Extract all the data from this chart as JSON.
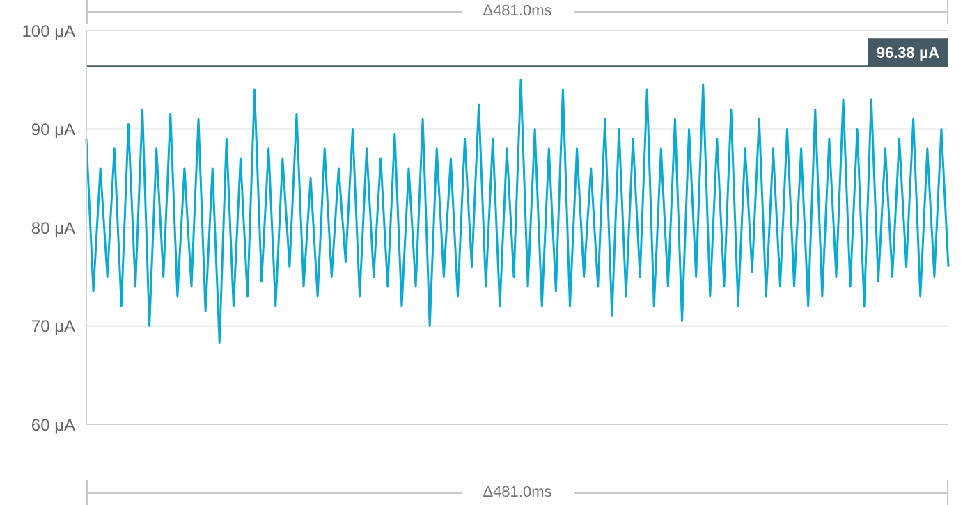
{
  "chart_data": {
    "type": "line",
    "categories": [
      null,
      null,
      null,
      null,
      null,
      null,
      null,
      null,
      null,
      null,
      null,
      null,
      null,
      null,
      null,
      null,
      null,
      null,
      null,
      null,
      null,
      null,
      null,
      null,
      null,
      null,
      null,
      null,
      null,
      null,
      null,
      null,
      null,
      null,
      null,
      null,
      null,
      null,
      null,
      null,
      null,
      null,
      null,
      null,
      null,
      null,
      null,
      null,
      null,
      null,
      null,
      null,
      null,
      null,
      null,
      null,
      null,
      null,
      null,
      null,
      null,
      null,
      null,
      null,
      null,
      null,
      null,
      null,
      null,
      null,
      null,
      null,
      null,
      null,
      null,
      null,
      null,
      null,
      null,
      null,
      null,
      null,
      null,
      null,
      null,
      null,
      null,
      null,
      null,
      null,
      null,
      null,
      null,
      null,
      null,
      null,
      null,
      null,
      null,
      null,
      null,
      null,
      null,
      null,
      null,
      null,
      null,
      null,
      null,
      null,
      null,
      null,
      null,
      null,
      null,
      null,
      null,
      null,
      null,
      null,
      null,
      null,
      null,
      null
    ],
    "series": [
      {
        "color": "#0aaad2",
        "values": [
          89,
          73.5,
          86,
          75,
          88,
          72,
          90.5,
          74,
          92,
          70,
          88,
          75,
          91.5,
          73,
          86,
          74,
          91,
          71.5,
          86,
          68.3,
          89,
          72,
          87,
          73,
          94,
          74.5,
          88,
          72,
          87,
          76,
          91.5,
          74,
          85,
          73,
          88,
          75,
          86,
          76.5,
          90,
          73,
          88,
          75,
          87,
          74,
          89.5,
          72,
          86,
          74,
          91,
          70,
          88,
          75,
          87,
          73,
          89,
          76,
          92.5,
          74,
          89,
          72,
          88,
          75,
          95,
          74,
          90,
          72,
          88,
          73.5,
          94,
          72,
          88,
          75,
          86,
          74,
          91,
          71,
          90,
          73,
          89,
          75,
          94,
          72,
          88,
          74,
          91,
          70.5,
          90,
          75,
          94.5,
          73,
          89,
          74,
          92,
          72,
          88,
          75.5,
          91,
          73,
          88,
          74,
          90,
          74,
          88,
          72,
          92,
          73,
          89,
          75,
          93,
          74,
          90,
          72,
          93,
          74.5,
          88,
          75,
          89,
          76,
          91,
          73,
          88,
          75,
          90,
          76
        ]
      }
    ],
    "ylim": [
      60,
      100
    ],
    "yticks": [
      {
        "value": 60,
        "label": "60 μA"
      },
      {
        "value": 70,
        "label": "70 μA"
      },
      {
        "value": 80,
        "label": "80 μA"
      },
      {
        "value": 90,
        "label": "90 μA"
      },
      {
        "value": 100,
        "label": "100 μA"
      }
    ],
    "grid": "y",
    "tick_labels": "y",
    "ref_lines": [
      {
        "axis": "y",
        "value": 96.38,
        "label": "96.38 μA",
        "color": "#455a64"
      }
    ],
    "annotations": [
      "Δ481.0ms",
      "Δ481.0ms"
    ]
  }
}
